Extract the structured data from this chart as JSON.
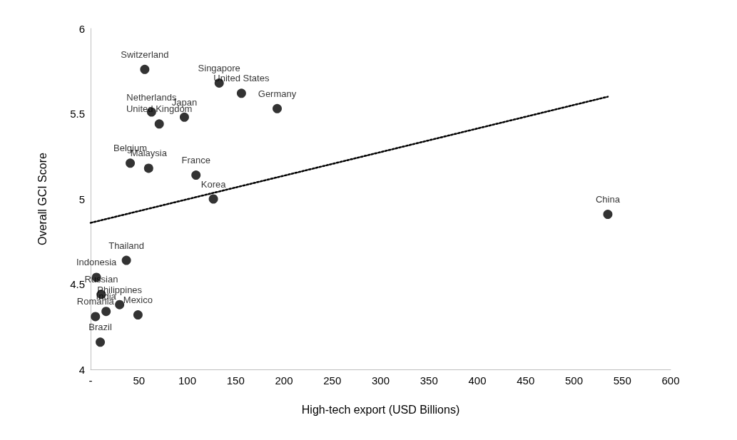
{
  "chart_data": {
    "type": "scatter",
    "xlabel": "High-tech export (USD Billions)",
    "ylabel": "Overall GCI Score",
    "xlim": [
      0,
      600
    ],
    "xticks": [
      {
        "value": 0,
        "label": "-"
      },
      50,
      100,
      150,
      200,
      250,
      300,
      350,
      400,
      450,
      500,
      550,
      600
    ],
    "ylim": [
      4,
      6
    ],
    "yticks": [
      4,
      4.5,
      5,
      5.5,
      6
    ],
    "grid": false,
    "series": [
      {
        "color": "#000000",
        "marker": "circle",
        "value_labels": [
          "Switzerland",
          "Singapore",
          "United States",
          "Germany",
          "Netherlands",
          "Japan",
          "United Kingdom",
          "Belgium",
          "Malaysia",
          "France",
          "Korea",
          "China",
          "Thailand",
          "Indonesia",
          "Russian",
          "Philippines",
          "India",
          "Mexico",
          "Romania",
          "Brazil"
        ],
        "x": [
          56,
          133,
          156,
          193,
          63,
          97,
          71,
          41,
          60,
          109,
          127,
          535,
          37,
          6,
          11,
          30,
          16,
          49,
          5,
          10
        ],
        "values": [
          5.76,
          5.68,
          5.62,
          5.53,
          5.51,
          5.48,
          5.44,
          5.21,
          5.18,
          5.14,
          5.0,
          4.91,
          4.64,
          4.54,
          4.44,
          4.38,
          4.34,
          4.32,
          4.31,
          4.16
        ]
      },
      {
        "type": "line",
        "color": "#000000",
        "marker": "none",
        "line_style": "dotted",
        "x": [
          0,
          535
        ],
        "values": [
          4.86,
          5.6
        ]
      }
    ]
  }
}
